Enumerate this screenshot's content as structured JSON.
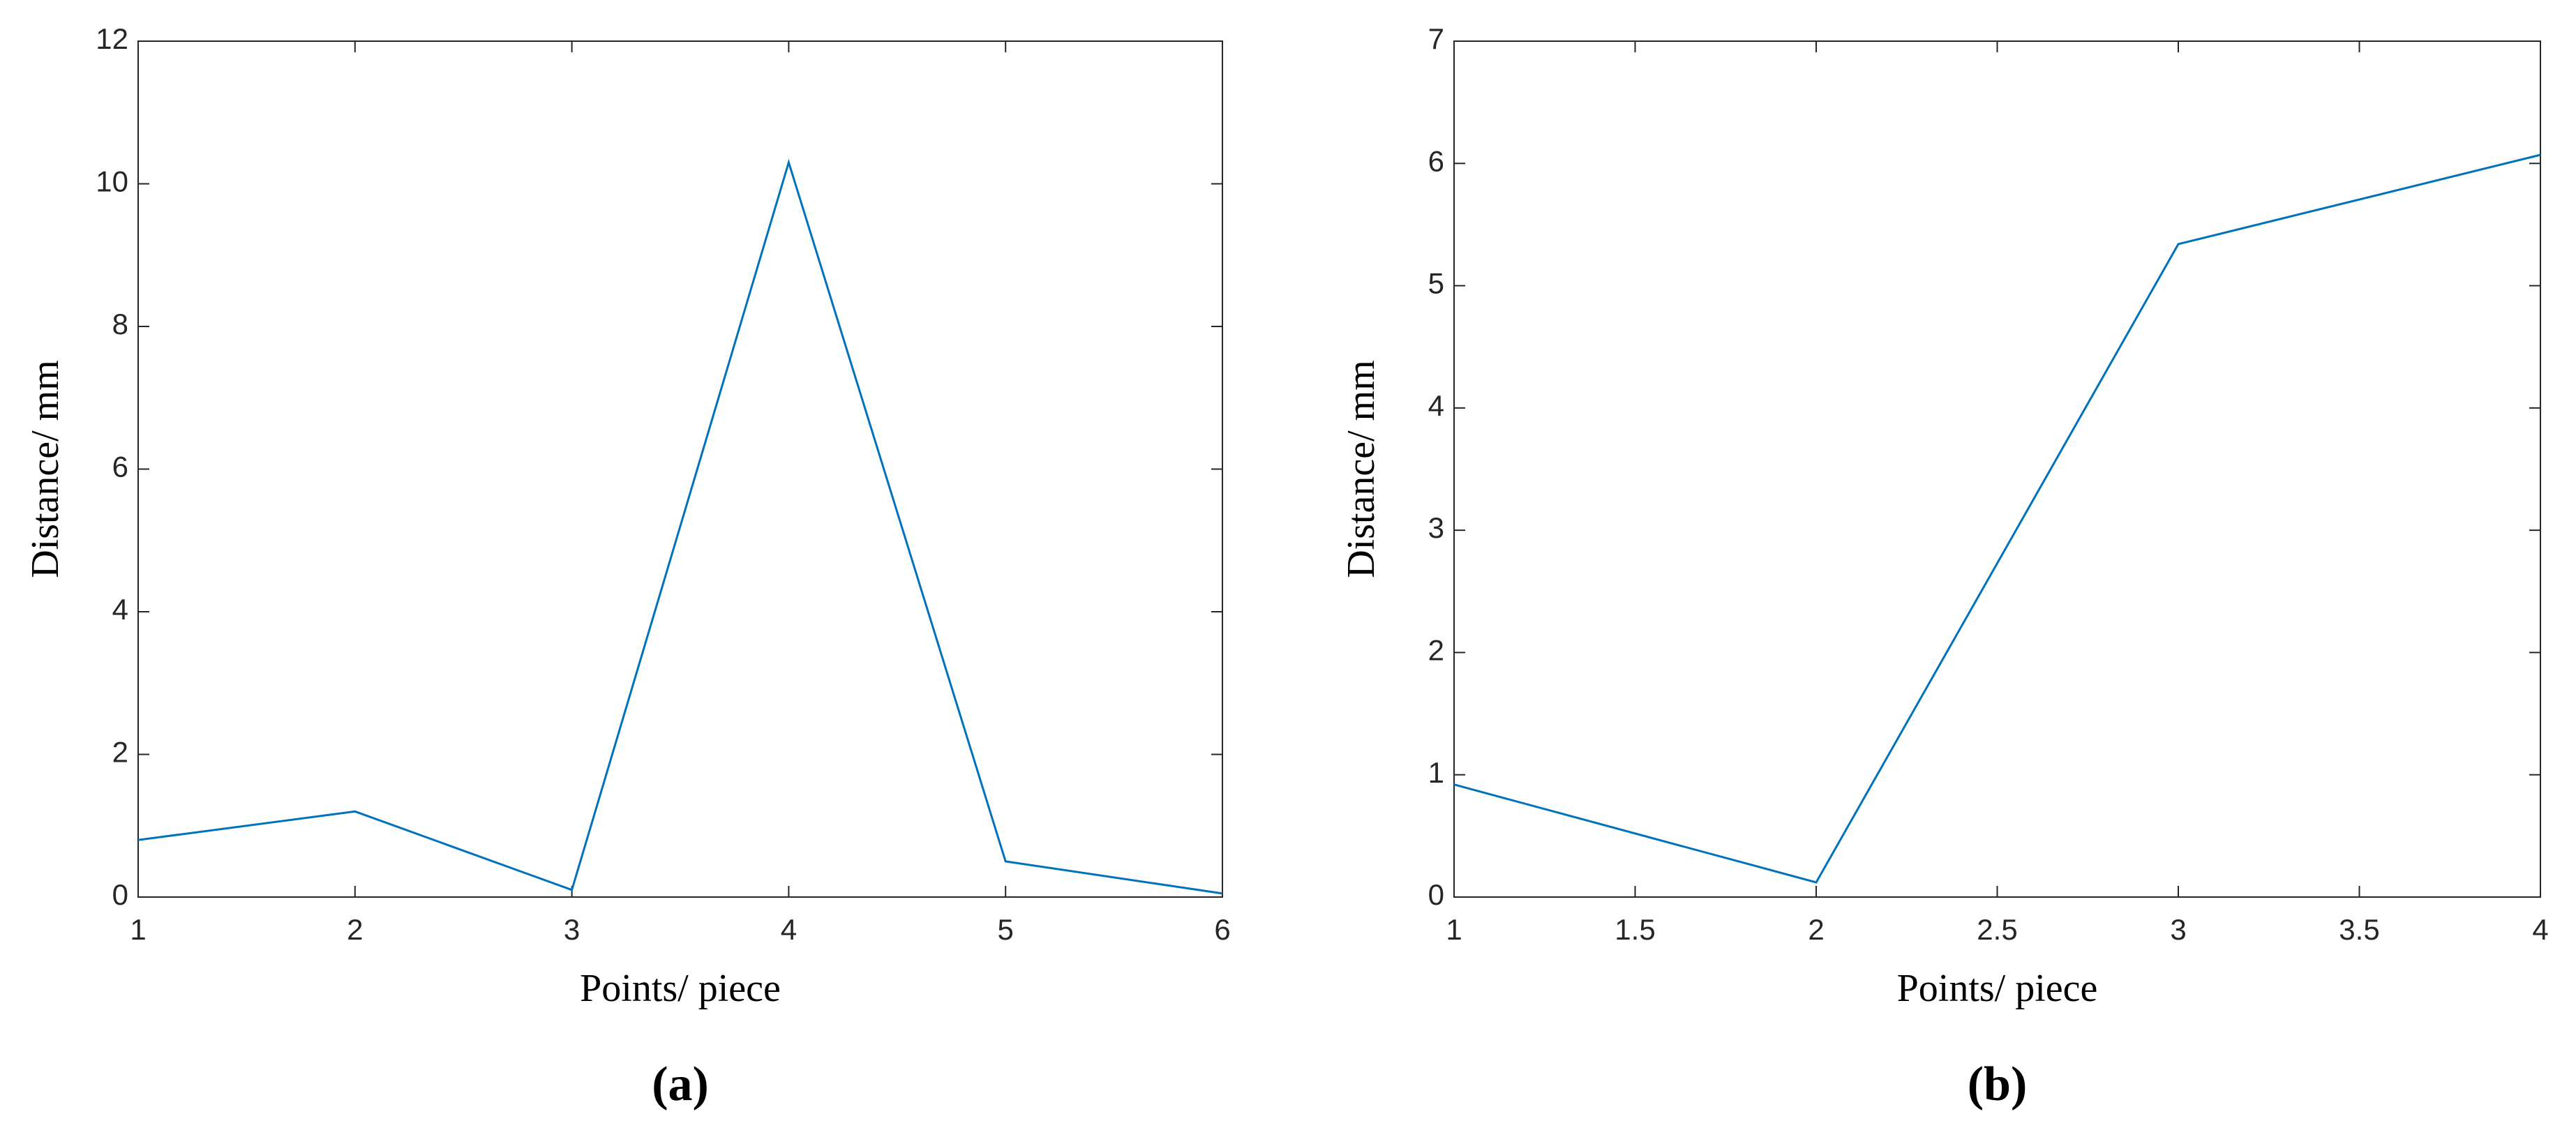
{
  "chart_data": [
    {
      "type": "line",
      "caption": "(a)",
      "xlabel": "Points/ piece",
      "ylabel": "Distance/ mm",
      "x": [
        1,
        2,
        3,
        4,
        5,
        6
      ],
      "values": [
        0.8,
        1.2,
        0.1,
        10.3,
        0.5,
        0.05
      ],
      "color": "#0072bd",
      "xlim": [
        1,
        6
      ],
      "xticks": [
        1,
        2,
        3,
        4,
        5,
        6
      ],
      "ylim": [
        0,
        12
      ],
      "yticks": [
        0,
        2,
        4,
        6,
        8,
        10,
        12
      ],
      "grid": false
    },
    {
      "type": "line",
      "caption": "(b)",
      "xlabel": "Points/ piece",
      "ylabel": "Distance/ mm",
      "x": [
        1,
        2,
        3,
        4
      ],
      "values": [
        0.92,
        0.12,
        5.34,
        6.07
      ],
      "color": "#0072bd",
      "xlim": [
        1,
        4
      ],
      "xticks": [
        1,
        1.5,
        2,
        2.5,
        3,
        3.5,
        4
      ],
      "ylim": [
        0,
        7
      ],
      "yticks": [
        0,
        1,
        2,
        3,
        4,
        5,
        6,
        7
      ],
      "grid": false
    }
  ]
}
